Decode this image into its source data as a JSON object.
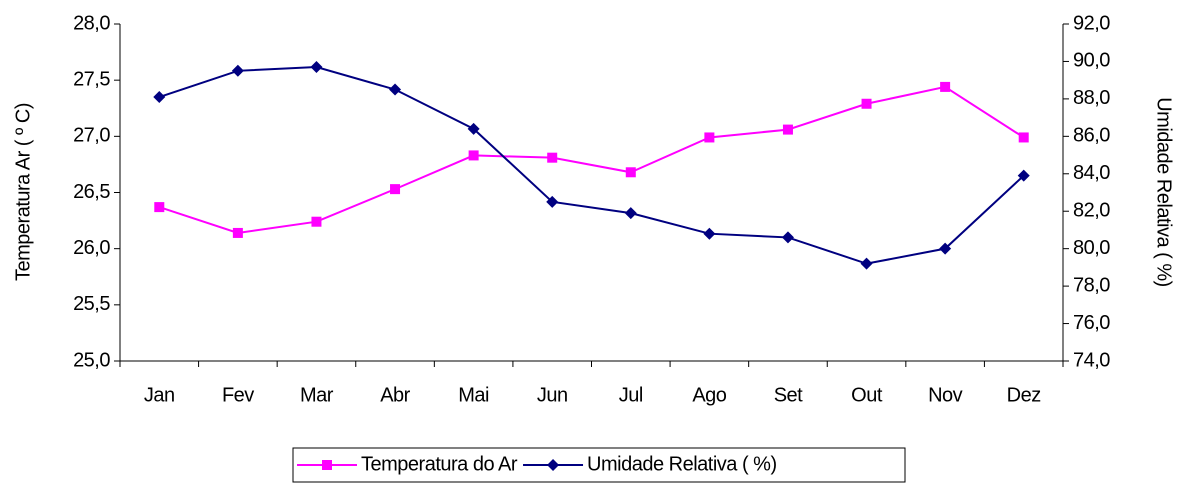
{
  "chart_data": {
    "type": "line",
    "ylabel": "Temperatura Ar ( º C)",
    "y2label": "Umidade Relativa ( %)",
    "categories": [
      "Jan",
      "Fev",
      "Mar",
      "Abr",
      "Mai",
      "Jun",
      "Jul",
      "Ago",
      "Set",
      "Out",
      "Nov",
      "Dez"
    ],
    "series": [
      {
        "name": "Temperatura do Ar",
        "color": "#ff00ff",
        "marker": "square",
        "values": [
          26.37,
          26.14,
          26.24,
          26.53,
          26.83,
          26.81,
          26.68,
          26.99,
          27.06,
          27.29,
          27.44,
          26.99
        ]
      },
      {
        "name": "Umidade Relativa ( %)",
        "color": "#000080",
        "marker": "diamond",
        "axis": "y2",
        "values": [
          88.1,
          89.5,
          89.7,
          88.5,
          86.4,
          82.5,
          81.9,
          80.8,
          80.6,
          79.2,
          80.0,
          83.9
        ]
      }
    ],
    "ylim": [
      25,
      28
    ],
    "yticks": [
      {
        "value": 25,
        "label": "25,0"
      },
      {
        "value": 25.5,
        "label": "25,5"
      },
      {
        "value": 26,
        "label": "26,0"
      },
      {
        "value": 26.5,
        "label": "26,5"
      },
      {
        "value": 27,
        "label": "27,0"
      },
      {
        "value": 27.5,
        "label": "27,5"
      },
      {
        "value": 28,
        "label": "28,0"
      }
    ],
    "y2lim": [
      74,
      92
    ],
    "y2ticks": [
      {
        "value": 74,
        "label": "74,0"
      },
      {
        "value": 76,
        "label": "76,0"
      },
      {
        "value": 78,
        "label": "78,0"
      },
      {
        "value": 80,
        "label": "80,0"
      },
      {
        "value": 82,
        "label": "82,0"
      },
      {
        "value": 84,
        "label": "84,0"
      },
      {
        "value": 86,
        "label": "86,0"
      },
      {
        "value": 88,
        "label": "88,0"
      },
      {
        "value": 90,
        "label": "90,0"
      },
      {
        "value": 92,
        "label": "92,0"
      }
    ],
    "grid": false,
    "legend": "bottom"
  }
}
